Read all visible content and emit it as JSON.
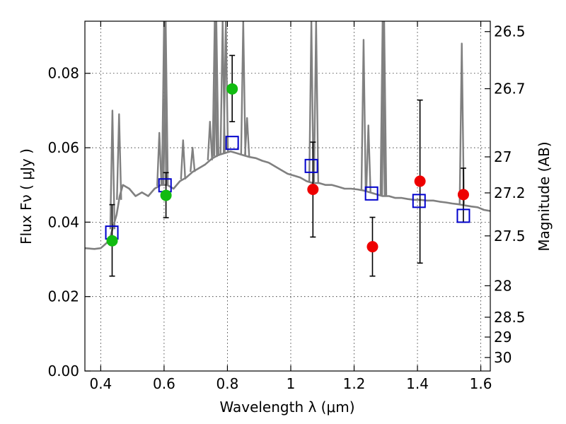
{
  "chart_data": {
    "type": "scatter",
    "title": "",
    "xlabel": "Wavelength  λ (μm)",
    "ylabel": "Flux  Fν  ( μJy )",
    "y2label": "Magnitude (AB)",
    "xlim": [
      0.35,
      1.63
    ],
    "ylim": [
      0.0,
      0.094
    ],
    "grid": true,
    "legend": "none",
    "x_ticks": [
      "0.4",
      "0.6",
      "0.8",
      "1",
      "1.2",
      "1.4",
      "1.6"
    ],
    "y_ticks": [
      "0.00",
      "0.02",
      "0.04",
      "0.06",
      "0.08"
    ],
    "y2_ticks": [
      "26.5",
      "26.7",
      "27",
      "27.2",
      "27.5",
      "28",
      "28.5",
      "29",
      "30"
    ],
    "colors": {
      "model_spectrum": "#808080",
      "model_photometry": "#0000cc",
      "observed_green": "#11bb11",
      "observed_red": "#ee0000",
      "errorbar": "#000000"
    },
    "series": [
      {
        "kind": "line",
        "values_note": "",
        "points": [
          [
            0.35,
            0.033
          ],
          [
            0.38,
            0.0328
          ],
          [
            0.4,
            0.033
          ],
          [
            0.42,
            0.0345
          ],
          [
            0.43,
            0.036
          ],
          [
            0.44,
            0.039
          ],
          [
            0.45,
            0.042
          ],
          [
            0.46,
            0.047
          ],
          [
            0.47,
            0.05
          ],
          [
            0.49,
            0.049
          ],
          [
            0.51,
            0.047
          ],
          [
            0.53,
            0.048
          ],
          [
            0.55,
            0.047
          ],
          [
            0.57,
            0.049
          ],
          [
            0.59,
            0.05
          ],
          [
            0.61,
            0.05
          ],
          [
            0.63,
            0.049
          ],
          [
            0.65,
            0.051
          ],
          [
            0.67,
            0.052
          ],
          [
            0.69,
            0.0535
          ],
          [
            0.71,
            0.0545
          ],
          [
            0.73,
            0.0555
          ],
          [
            0.75,
            0.057
          ],
          [
            0.77,
            0.058
          ],
          [
            0.79,
            0.0585
          ],
          [
            0.81,
            0.059
          ],
          [
            0.83,
            0.0585
          ],
          [
            0.85,
            0.058
          ],
          [
            0.87,
            0.0575
          ],
          [
            0.89,
            0.0572
          ],
          [
            0.91,
            0.0565
          ],
          [
            0.93,
            0.056
          ],
          [
            0.95,
            0.055
          ],
          [
            0.97,
            0.054
          ],
          [
            0.99,
            0.053
          ],
          [
            1.01,
            0.0525
          ],
          [
            1.03,
            0.052
          ],
          [
            1.05,
            0.051
          ],
          [
            1.07,
            0.0505
          ],
          [
            1.09,
            0.0505
          ],
          [
            1.11,
            0.05
          ],
          [
            1.13,
            0.05
          ],
          [
            1.15,
            0.0495
          ],
          [
            1.17,
            0.049
          ],
          [
            1.19,
            0.049
          ],
          [
            1.21,
            0.0488
          ],
          [
            1.23,
            0.0485
          ],
          [
            1.25,
            0.048
          ],
          [
            1.27,
            0.0475
          ],
          [
            1.29,
            0.047
          ],
          [
            1.31,
            0.047
          ],
          [
            1.33,
            0.0465
          ],
          [
            1.35,
            0.0465
          ],
          [
            1.37,
            0.0462
          ],
          [
            1.39,
            0.046
          ],
          [
            1.41,
            0.046
          ],
          [
            1.43,
            0.0458
          ],
          [
            1.45,
            0.0458
          ],
          [
            1.47,
            0.0455
          ],
          [
            1.49,
            0.0453
          ],
          [
            1.51,
            0.045
          ],
          [
            1.53,
            0.0448
          ],
          [
            1.55,
            0.0445
          ],
          [
            1.57,
            0.0442
          ],
          [
            1.59,
            0.044
          ],
          [
            1.61,
            0.0433
          ],
          [
            1.63,
            0.043
          ]
        ],
        "emission_lines": [
          [
            0.437,
            0.07
          ],
          [
            0.458,
            0.069
          ],
          [
            0.585,
            0.064
          ],
          [
            0.6,
            0.094
          ],
          [
            0.605,
            0.094
          ],
          [
            0.66,
            0.062
          ],
          [
            0.69,
            0.06
          ],
          [
            0.745,
            0.067
          ],
          [
            0.76,
            0.094
          ],
          [
            0.765,
            0.094
          ],
          [
            0.785,
            0.094
          ],
          [
            0.795,
            0.094
          ],
          [
            0.85,
            0.094
          ],
          [
            0.862,
            0.068
          ],
          [
            1.065,
            0.094
          ],
          [
            1.08,
            0.094
          ],
          [
            1.23,
            0.089
          ],
          [
            1.245,
            0.066
          ],
          [
            1.29,
            0.094
          ],
          [
            1.295,
            0.094
          ],
          [
            1.54,
            0.088
          ]
        ]
      },
      {
        "kind": "model_photometry",
        "marker": "open-square",
        "points": [
          [
            0.435,
            0.0372
          ],
          [
            0.603,
            0.0499
          ],
          [
            0.815,
            0.0613
          ],
          [
            1.065,
            0.0551
          ],
          [
            1.255,
            0.0477
          ],
          [
            1.405,
            0.0457
          ],
          [
            1.545,
            0.0417
          ]
        ]
      },
      {
        "kind": "observed_green",
        "marker": "filled-circle",
        "points": [
          {
            "x": 0.436,
            "y": 0.035,
            "ylo": 0.0255,
            "yhi": 0.0447
          },
          {
            "x": 0.606,
            "y": 0.0472,
            "ylo": 0.0412,
            "yhi": 0.0533
          },
          {
            "x": 0.815,
            "y": 0.0758,
            "ylo": 0.067,
            "yhi": 0.0848
          }
        ]
      },
      {
        "kind": "observed_red",
        "marker": "filled-circle",
        "points": [
          {
            "x": 1.07,
            "y": 0.0488,
            "ylo": 0.036,
            "yhi": 0.0615
          },
          {
            "x": 1.258,
            "y": 0.0334,
            "ylo": 0.0255,
            "yhi": 0.0413
          },
          {
            "x": 1.408,
            "y": 0.051,
            "ylo": 0.029,
            "yhi": 0.0728
          },
          {
            "x": 1.545,
            "y": 0.0474,
            "ylo": 0.04,
            "yhi": 0.0545
          }
        ]
      }
    ]
  }
}
